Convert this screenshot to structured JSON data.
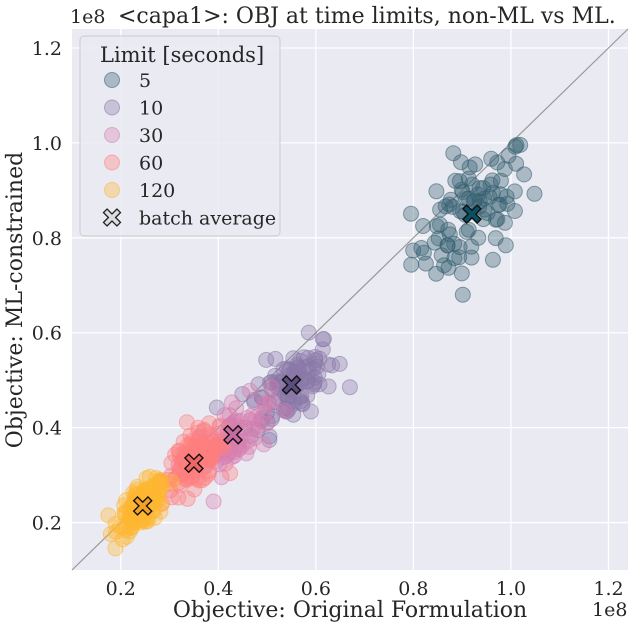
{
  "chart_data": {
    "type": "scatter",
    "title": "<capa1>: OBJ at time limits, non-ML vs ML.",
    "xlabel": "Objective: Original Formulation",
    "ylabel": "Objective: ML-constrained",
    "x_exponent": "1e8",
    "y_exponent": "1e8",
    "xlim": [
      0.1,
      1.24
    ],
    "ylim": [
      0.1,
      1.24
    ],
    "x_ticks": [
      0.2,
      0.4,
      0.6,
      0.8,
      1.0,
      1.2
    ],
    "y_ticks": [
      0.2,
      0.4,
      0.6,
      0.8,
      1.0,
      1.2
    ],
    "x_tick_labels": [
      "0.2",
      "0.4",
      "0.6",
      "0.8",
      "1.0",
      "1.2"
    ],
    "y_tick_labels": [
      "0.2",
      "0.4",
      "0.6",
      "0.8",
      "1.0",
      "1.2"
    ],
    "legend_title": "Limit [seconds]",
    "legend_position": "top-left",
    "batch_average_label": "batch average",
    "grid": true,
    "reference_line": "y = x",
    "series": [
      {
        "name": "5",
        "color": "#335f70",
        "center": [
          0.92,
          0.85
        ],
        "spread": [
          0.11,
          0.11
        ],
        "count": 90,
        "batch_average": [
          0.92,
          0.85
        ],
        "avg_color": "#0b4f63"
      },
      {
        "name": "10",
        "color": "#8a77a8",
        "center": [
          0.55,
          0.49
        ],
        "spread": [
          0.08,
          0.07
        ],
        "count": 110,
        "batch_average": [
          0.55,
          0.49
        ],
        "avg_color": "#5a4e7f"
      },
      {
        "name": "30",
        "color": "#d67fb0",
        "center": [
          0.43,
          0.38
        ],
        "spread": [
          0.07,
          0.06
        ],
        "count": 80,
        "batch_average": [
          0.43,
          0.385
        ],
        "avg_color": "#c56ba0"
      },
      {
        "name": "60",
        "color": "#ff7f7f",
        "center": [
          0.35,
          0.33
        ],
        "spread": [
          0.06,
          0.05
        ],
        "count": 110,
        "batch_average": [
          0.35,
          0.325
        ],
        "avg_color": "#f26565"
      },
      {
        "name": "120",
        "color": "#ffb732",
        "center": [
          0.245,
          0.235
        ],
        "spread": [
          0.045,
          0.04
        ],
        "count": 120,
        "batch_average": [
          0.245,
          0.235
        ],
        "avg_color": "#f4a224"
      }
    ]
  }
}
